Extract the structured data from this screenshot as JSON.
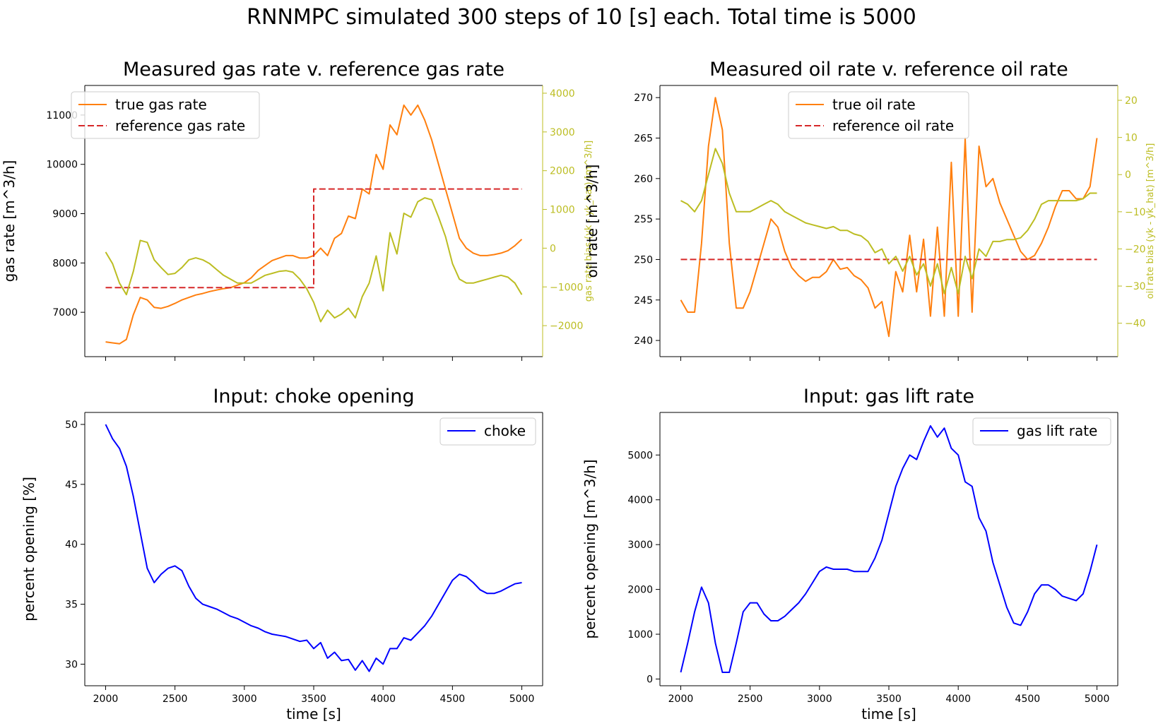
{
  "figure": {
    "suptitle": "RNNMPC simulated 300 steps of 10 [s] each. Total time is 5000"
  },
  "colors": {
    "true_rate": "#ff7f0e",
    "reference": "#d62728",
    "bias": "#bcbd22",
    "input": "#0000ff",
    "axes": "#000000"
  },
  "chart_data": [
    {
      "type": "line",
      "title": "Measured gas rate v. reference gas rate",
      "xlabel": "",
      "ylabel": "gas rate [m^3/h]",
      "y2label": "gas rate bias (yk - yk_hat) [m^3/h]",
      "xlim": [
        1850,
        5150
      ],
      "ylim": [
        6100,
        11600
      ],
      "y2lim": [
        -2800,
        4200
      ],
      "xticks": [
        2000,
        2500,
        3000,
        3500,
        4000,
        4500,
        5000
      ],
      "xtick_labels": [
        "",
        "",
        "",
        "",
        "",
        "",
        ""
      ],
      "yticks": [
        7000,
        8000,
        9000,
        10000,
        11000
      ],
      "ytick_labels": [
        "7000",
        "8000",
        "9000",
        "10000",
        "11000"
      ],
      "y2ticks": [
        -2000,
        -1000,
        0,
        1000,
        2000,
        3000,
        4000
      ],
      "y2tick_labels": [
        "−2000",
        "−1000",
        "0",
        "1000",
        "2000",
        "3000",
        "4000"
      ],
      "legend_position": "top-left",
      "grid": false,
      "series": [
        {
          "name": "true gas rate",
          "axis": "left",
          "style": "solid",
          "color": "#ff7f0e",
          "x": [
            2000,
            2050,
            2100,
            2150,
            2200,
            2250,
            2300,
            2350,
            2400,
            2450,
            2500,
            2550,
            2600,
            2650,
            2700,
            2750,
            2800,
            2850,
            2900,
            2950,
            3000,
            3050,
            3100,
            3150,
            3200,
            3250,
            3300,
            3350,
            3400,
            3450,
            3500,
            3550,
            3600,
            3650,
            3700,
            3750,
            3800,
            3850,
            3900,
            3950,
            4000,
            4050,
            4100,
            4150,
            4200,
            4250,
            4300,
            4350,
            4400,
            4450,
            4500,
            4550,
            4600,
            4650,
            4700,
            4750,
            4800,
            4850,
            4900,
            4950,
            5000
          ],
          "values": [
            6400,
            6380,
            6360,
            6450,
            6950,
            7300,
            7250,
            7100,
            7080,
            7120,
            7180,
            7250,
            7300,
            7350,
            7380,
            7420,
            7450,
            7480,
            7500,
            7550,
            7600,
            7700,
            7850,
            7950,
            8050,
            8100,
            8150,
            8150,
            8100,
            8100,
            8150,
            8300,
            8150,
            8500,
            8600,
            8950,
            8900,
            9500,
            9400,
            10200,
            9900,
            10800,
            10600,
            11200,
            11000,
            11200,
            10900,
            10500,
            10000,
            9500,
            9000,
            8500,
            8300,
            8200,
            8150,
            8150,
            8170,
            8200,
            8250,
            8350,
            8480
          ]
        },
        {
          "name": "reference gas rate",
          "axis": "left",
          "style": "dashed",
          "color": "#d62728",
          "x": [
            2000,
            3500,
            3500,
            5000
          ],
          "values": [
            7500,
            7500,
            9500,
            9500
          ]
        },
        {
          "name": "",
          "axis": "right",
          "style": "solid",
          "color": "#bcbd22",
          "x": [
            2000,
            2050,
            2100,
            2150,
            2200,
            2250,
            2300,
            2350,
            2400,
            2450,
            2500,
            2550,
            2600,
            2650,
            2700,
            2750,
            2800,
            2850,
            2900,
            2950,
            3000,
            3050,
            3100,
            3150,
            3200,
            3250,
            3300,
            3350,
            3400,
            3450,
            3500,
            3550,
            3600,
            3650,
            3700,
            3750,
            3800,
            3850,
            3900,
            3950,
            4000,
            4050,
            4100,
            4150,
            4200,
            4250,
            4300,
            4350,
            4400,
            4450,
            4500,
            4550,
            4600,
            4650,
            4700,
            4750,
            4800,
            4850,
            4900,
            4950,
            5000
          ],
          "values": [
            -100,
            -400,
            -900,
            -1200,
            -600,
            200,
            150,
            -300,
            -500,
            -680,
            -650,
            -500,
            -300,
            -250,
            -300,
            -400,
            -550,
            -700,
            -800,
            -900,
            -900,
            -900,
            -800,
            -700,
            -650,
            -600,
            -580,
            -620,
            -800,
            -1050,
            -1400,
            -1900,
            -1600,
            -1800,
            -1700,
            -1550,
            -1800,
            -1250,
            -900,
            -200,
            -1100,
            400,
            -150,
            900,
            800,
            1200,
            1300,
            1250,
            800,
            300,
            -400,
            -800,
            -900,
            -900,
            -850,
            -800,
            -750,
            -700,
            -750,
            -900,
            -1200
          ]
        }
      ]
    },
    {
      "type": "line",
      "title": "Measured oil rate v. reference oil rate",
      "xlabel": "",
      "ylabel": "oil rate [m^3/h]",
      "y2label": "oil rate bias (yk - yk_hat) [m^3/h]",
      "xlim": [
        1850,
        5150
      ],
      "ylim": [
        238,
        271.5
      ],
      "y2lim": [
        -49,
        24
      ],
      "xticks": [
        2000,
        2500,
        3000,
        3500,
        4000,
        4500,
        5000
      ],
      "xtick_labels": [
        "",
        "",
        "",
        "",
        "",
        "",
        ""
      ],
      "yticks": [
        240,
        245,
        250,
        255,
        260,
        265,
        270
      ],
      "ytick_labels": [
        "240",
        "245",
        "250",
        "255",
        "260",
        "265",
        "270"
      ],
      "y2ticks": [
        -40,
        -30,
        -20,
        -10,
        0,
        10,
        20
      ],
      "y2tick_labels": [
        "−40",
        "−30",
        "−20",
        "−10",
        "0",
        "10",
        "20"
      ],
      "legend_position": "top-center",
      "grid": false,
      "series": [
        {
          "name": "true oil rate",
          "axis": "left",
          "style": "solid",
          "color": "#ff7f0e",
          "x": [
            2000,
            2050,
            2100,
            2150,
            2200,
            2250,
            2300,
            2350,
            2400,
            2450,
            2500,
            2550,
            2600,
            2650,
            2700,
            2750,
            2800,
            2850,
            2900,
            2950,
            3000,
            3050,
            3100,
            3150,
            3200,
            3250,
            3300,
            3350,
            3400,
            3450,
            3500,
            3550,
            3600,
            3650,
            3700,
            3750,
            3800,
            3850,
            3900,
            3950,
            4000,
            4050,
            4100,
            4150,
            4200,
            4250,
            4300,
            4350,
            4400,
            4450,
            4500,
            4550,
            4600,
            4650,
            4700,
            4750,
            4800,
            4850,
            4900,
            4950,
            5000
          ],
          "values": [
            245,
            243.5,
            243.5,
            252,
            264,
            270,
            266,
            252,
            244,
            244,
            246,
            249,
            252,
            255,
            254,
            251,
            249,
            248,
            247.3,
            247.8,
            247.8,
            248.5,
            250,
            248.8,
            249,
            248,
            247.5,
            246.5,
            244,
            244.8,
            240.5,
            248.5,
            246,
            253,
            246,
            252.5,
            243,
            254,
            243,
            262,
            243,
            265,
            243.5,
            264,
            259,
            260,
            257,
            255,
            253,
            251,
            250,
            250.5,
            252,
            254,
            256.5,
            258.5,
            258.5,
            257.5,
            257.5,
            259,
            265
          ]
        },
        {
          "name": "reference oil rate",
          "axis": "left",
          "style": "dashed",
          "color": "#d62728",
          "x": [
            2000,
            5000
          ],
          "values": [
            250,
            250
          ]
        },
        {
          "name": "",
          "axis": "right",
          "style": "solid",
          "color": "#bcbd22",
          "x": [
            2000,
            2050,
            2100,
            2150,
            2200,
            2250,
            2300,
            2350,
            2400,
            2450,
            2500,
            2550,
            2600,
            2650,
            2700,
            2750,
            2800,
            2850,
            2900,
            2950,
            3000,
            3050,
            3100,
            3150,
            3200,
            3250,
            3300,
            3350,
            3400,
            3450,
            3500,
            3550,
            3600,
            3650,
            3700,
            3750,
            3800,
            3850,
            3900,
            3950,
            4000,
            4050,
            4100,
            4150,
            4200,
            4250,
            4300,
            4350,
            4400,
            4450,
            4500,
            4550,
            4600,
            4650,
            4700,
            4750,
            4800,
            4850,
            4900,
            4950,
            5000
          ],
          "values": [
            -7,
            -8,
            -10,
            -7,
            0,
            7,
            3,
            -5,
            -10,
            -10,
            -10,
            -9,
            -8,
            -7,
            -8,
            -10,
            -11,
            -12,
            -13,
            -13.5,
            -14,
            -14.5,
            -14,
            -15,
            -15,
            -16,
            -16.5,
            -18,
            -21,
            -20,
            -24,
            -22,
            -26,
            -22,
            -27,
            -24,
            -30,
            -24,
            -32,
            -25,
            -32,
            -22,
            -28,
            -20,
            -22,
            -18,
            -18,
            -17.5,
            -17.5,
            -17,
            -15,
            -12,
            -8,
            -7,
            -7,
            -7,
            -7,
            -7,
            -6.5,
            -5,
            -5
          ]
        }
      ]
    },
    {
      "type": "line",
      "title": "Input: choke opening",
      "xlabel": "time [s]",
      "ylabel": "percent opening [%]",
      "xlim": [
        1850,
        5150
      ],
      "ylim": [
        28.2,
        51
      ],
      "xticks": [
        2000,
        2500,
        3000,
        3500,
        4000,
        4500,
        5000
      ],
      "xtick_labels": [
        "2000",
        "2500",
        "3000",
        "3500",
        "4000",
        "4500",
        "5000"
      ],
      "yticks": [
        30,
        35,
        40,
        45,
        50
      ],
      "ytick_labels": [
        "30",
        "35",
        "40",
        "45",
        "50"
      ],
      "legend_position": "top-right",
      "grid": false,
      "series": [
        {
          "name": "choke",
          "axis": "left",
          "style": "solid",
          "color": "#0000ff",
          "x": [
            2000,
            2050,
            2100,
            2150,
            2200,
            2250,
            2300,
            2350,
            2400,
            2450,
            2500,
            2550,
            2600,
            2650,
            2700,
            2750,
            2800,
            2850,
            2900,
            2950,
            3000,
            3050,
            3100,
            3150,
            3200,
            3250,
            3300,
            3350,
            3400,
            3450,
            3500,
            3550,
            3600,
            3650,
            3700,
            3750,
            3800,
            3850,
            3900,
            3950,
            4000,
            4050,
            4100,
            4150,
            4200,
            4250,
            4300,
            4350,
            4400,
            4450,
            4500,
            4550,
            4600,
            4650,
            4700,
            4750,
            4800,
            4850,
            4900,
            4950,
            5000
          ],
          "values": [
            50,
            48.8,
            48,
            46.5,
            44,
            41,
            38,
            36.8,
            37.5,
            38,
            38.2,
            37.8,
            36.5,
            35.5,
            35,
            34.8,
            34.6,
            34.3,
            34,
            33.8,
            33.5,
            33.2,
            33,
            32.7,
            32.5,
            32.4,
            32.3,
            32.1,
            31.9,
            32,
            31.3,
            31.8,
            30.5,
            31,
            30.3,
            30.4,
            29.5,
            30.3,
            29.4,
            30.5,
            30,
            31.3,
            31.3,
            32.2,
            32,
            32.6,
            33.2,
            34,
            35,
            36,
            37,
            37.5,
            37.3,
            36.8,
            36.2,
            35.9,
            35.9,
            36.1,
            36.4,
            36.7,
            36.8
          ]
        }
      ]
    },
    {
      "type": "line",
      "title": "Input: gas lift rate",
      "xlabel": "time [s]",
      "ylabel": "percent opening [m^3/h]",
      "xlim": [
        1850,
        5150
      ],
      "ylim": [
        -150,
        5950
      ],
      "xticks": [
        2000,
        2500,
        3000,
        3500,
        4000,
        4500,
        5000
      ],
      "xtick_labels": [
        "2000",
        "2500",
        "3000",
        "3500",
        "4000",
        "4500",
        "5000"
      ],
      "yticks": [
        0,
        1000,
        2000,
        3000,
        4000,
        5000
      ],
      "ytick_labels": [
        "0",
        "1000",
        "2000",
        "3000",
        "4000",
        "5000"
      ],
      "legend_position": "top-right",
      "grid": false,
      "series": [
        {
          "name": "gas lift rate",
          "axis": "left",
          "style": "solid",
          "color": "#0000ff",
          "x": [
            2000,
            2050,
            2100,
            2150,
            2200,
            2250,
            2300,
            2350,
            2400,
            2450,
            2500,
            2550,
            2600,
            2650,
            2700,
            2750,
            2800,
            2850,
            2900,
            2950,
            3000,
            3050,
            3100,
            3150,
            3200,
            3250,
            3300,
            3350,
            3400,
            3450,
            3500,
            3550,
            3600,
            3650,
            3700,
            3750,
            3800,
            3850,
            3900,
            3950,
            4000,
            4050,
            4100,
            4150,
            4200,
            4250,
            4300,
            4350,
            4400,
            4450,
            4500,
            4550,
            4600,
            4650,
            4700,
            4750,
            4800,
            4850,
            4900,
            4950,
            5000
          ],
          "values": [
            150,
            800,
            1500,
            2050,
            1700,
            800,
            150,
            150,
            800,
            1500,
            1700,
            1700,
            1450,
            1300,
            1300,
            1400,
            1550,
            1700,
            1900,
            2150,
            2400,
            2500,
            2450,
            2450,
            2450,
            2400,
            2400,
            2400,
            2700,
            3100,
            3700,
            4300,
            4700,
            5000,
            4900,
            5300,
            5650,
            5400,
            5600,
            5150,
            5000,
            4400,
            4300,
            3600,
            3300,
            2600,
            2100,
            1600,
            1250,
            1200,
            1500,
            1900,
            2100,
            2100,
            2000,
            1850,
            1800,
            1750,
            1900,
            2400,
            3000
          ]
        }
      ]
    }
  ]
}
